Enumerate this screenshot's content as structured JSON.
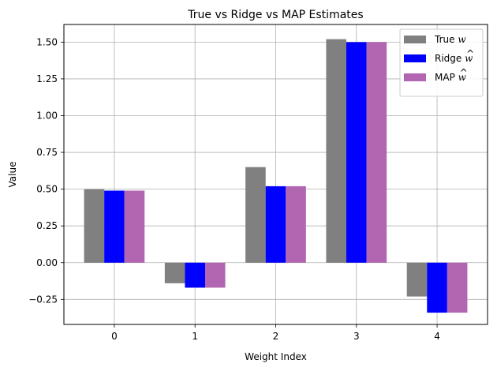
{
  "chart_data": {
    "type": "bar",
    "title": "True vs Ridge vs MAP Estimates",
    "xlabel": "Weight Index",
    "ylabel": "Value",
    "categories": [
      "0",
      "1",
      "2",
      "3",
      "4"
    ],
    "series": [
      {
        "name": "True w",
        "legend_main": "True ",
        "legend_sym": "w",
        "legend_hat": false,
        "color": "#808080",
        "values": [
          0.5,
          -0.14,
          0.65,
          1.52,
          -0.23
        ]
      },
      {
        "name": "Ridge ŵ",
        "legend_main": "Ridge ",
        "legend_sym": "w",
        "legend_hat": true,
        "color": "#0000ff",
        "values": [
          0.49,
          -0.17,
          0.52,
          1.5,
          -0.34
        ]
      },
      {
        "name": "MAP ŵ",
        "legend_main": "MAP ",
        "legend_sym": "w",
        "legend_hat": true,
        "color": "#b266b2",
        "values": [
          0.49,
          -0.17,
          0.52,
          1.5,
          -0.34
        ]
      }
    ],
    "yticks": [
      -0.25,
      0.0,
      0.25,
      0.5,
      0.75,
      1.0,
      1.25,
      1.5
    ],
    "ytick_labels": [
      "−0.25",
      "0.00",
      "0.25",
      "0.50",
      "0.75",
      "1.00",
      "1.25",
      "1.50"
    ],
    "ylim": [
      -0.42,
      1.62
    ],
    "xlim": [
      -0.625,
      4.625
    ],
    "grid": true,
    "legend_position": "top-right"
  }
}
